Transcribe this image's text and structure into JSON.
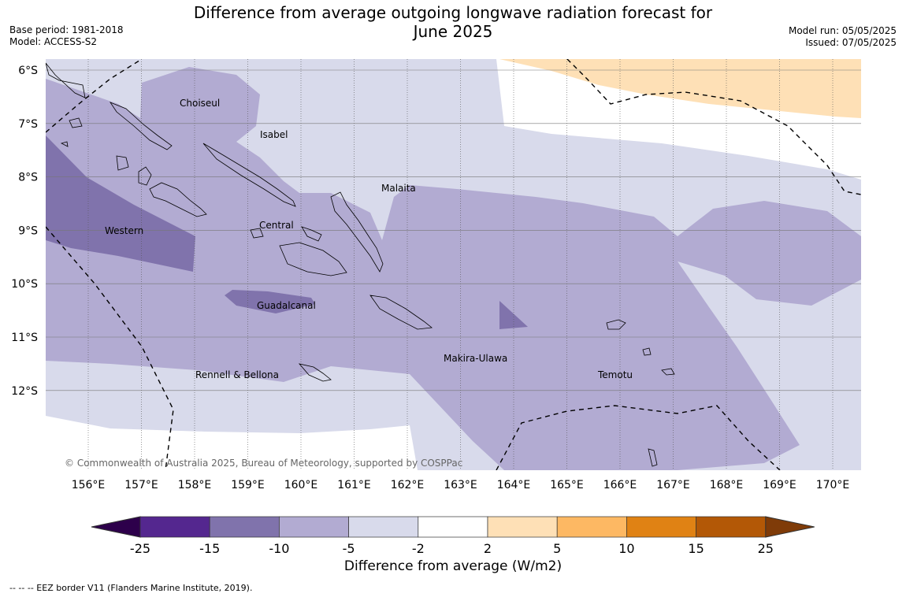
{
  "title": {
    "line1": "Difference from average outgoing longwave radiation forecast for",
    "line2": "June 2025"
  },
  "meta_left": {
    "base_period": "Base period: 1981-2018",
    "model": "Model: ACCESS-S2"
  },
  "meta_right": {
    "model_run": "Model run: 05/05/2025",
    "issued": "Issued: 07/05/2025"
  },
  "map": {
    "lon_labels": [
      "156°E",
      "157°E",
      "158°E",
      "159°E",
      "160°E",
      "161°E",
      "162°E",
      "163°E",
      "164°E",
      "165°E",
      "166°E",
      "167°E",
      "168°E",
      "169°E",
      "170°E"
    ],
    "lat_labels": [
      "6°S",
      "7°S",
      "8°S",
      "9°S",
      "10°S",
      "11°S",
      "12°S"
    ],
    "place_labels": [
      "Choiseul",
      "Isabel",
      "Malaita",
      "Western",
      "Central",
      "Guadalcanal",
      "Makira-Ulawa",
      "Temotu",
      "Rennell & Bellona"
    ],
    "copyright": "© Commonwealth of Australia 2025, Bureau of Meteorology, supported by COSPPac"
  },
  "colorbar": {
    "ticks": [
      "-25",
      "-15",
      "-10",
      "-5",
      "-2",
      "2",
      "5",
      "10",
      "15",
      "25"
    ],
    "colors": [
      "#54278f",
      "#8073ac",
      "#b2abd2",
      "#d8daeb",
      "#ffffff",
      "#fee0b6",
      "#fdb863",
      "#e08214",
      "#b35806"
    ],
    "under_color": "#2d004b",
    "over_color": "#7f3b08",
    "label": "Difference from average (W/m2)"
  },
  "footer": "--  --  -- EEZ border V11 (Flanders Marine Institute, 2019)."
}
